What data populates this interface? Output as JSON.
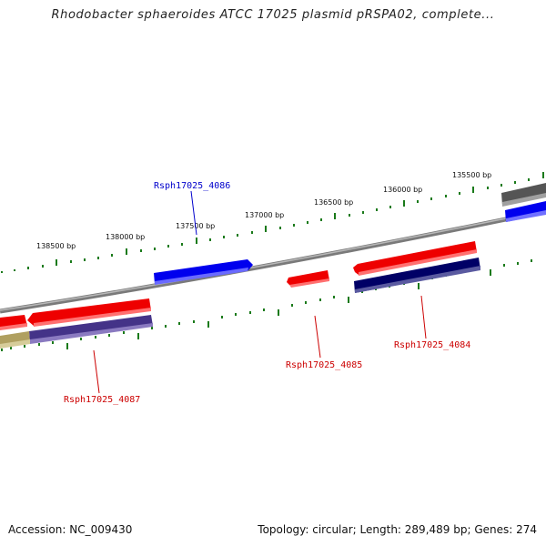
{
  "title": "Rhodobacter sphaeroides ATCC 17025 plasmid pRSPA02, complete...",
  "footer": {
    "accession": "Accession: NC_009430",
    "summary": "Topology: circular; Length: 289,489 bp; Genes: 274"
  },
  "scale_labels": [
    "138500 bp",
    "138000 bp",
    "137500 bp",
    "137000 bp",
    "136500 bp",
    "136000 bp",
    "135500 bp"
  ],
  "gene_labels": [
    {
      "name": "Rsph17025_4086",
      "color": "#0000cc"
    },
    {
      "name": "Rsph17025_4085",
      "color": "#cc0000"
    },
    {
      "name": "Rsph17025_4084",
      "color": "#cc0000"
    },
    {
      "name": "Rsph17025_4087",
      "color": "#cc0000"
    }
  ],
  "colors": {
    "backbone": "#808080",
    "ticks": "#1a7a1a",
    "red_gene": "#ee0000",
    "blue_gene": "#0000ee",
    "navy_gene": "#000066",
    "purple_gene": "#443388",
    "olive_gene": "#b0a060",
    "gray_gene": "#555555"
  }
}
